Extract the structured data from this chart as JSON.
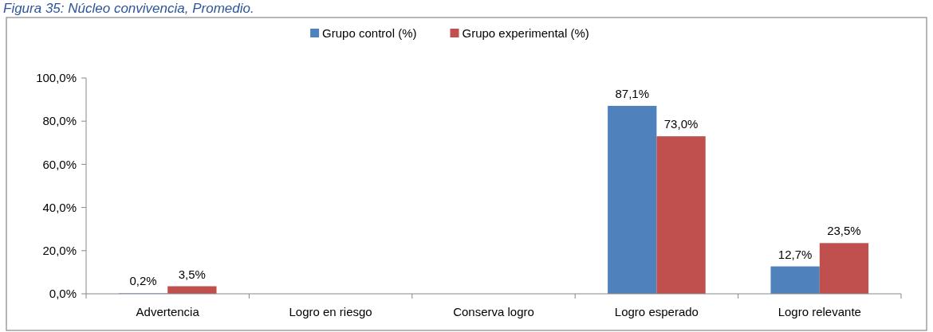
{
  "chart_data": {
    "type": "bar",
    "title": "Figura 35: Núcleo convivencia, Promedio.",
    "categories": [
      "Advertencia",
      "Logro en riesgo",
      "Conserva logro",
      "Logro esperado",
      "Logro relevante"
    ],
    "series": [
      {
        "name": "Grupo control (%)",
        "color": "#4f81bd",
        "values": [
          0.2,
          null,
          null,
          87.1,
          12.7
        ],
        "value_labels": [
          "0,2%",
          null,
          null,
          "87,1%",
          "12,7%"
        ]
      },
      {
        "name": "Grupo experimental (%)",
        "color": "#c0504d",
        "values": [
          3.5,
          null,
          null,
          73.0,
          23.5
        ],
        "value_labels": [
          "3,5%",
          null,
          null,
          "73,0%",
          "23,5%"
        ]
      }
    ],
    "ylim": [
      0,
      100
    ],
    "yticks": [
      {
        "value": 0,
        "label": "0,0%"
      },
      {
        "value": 20,
        "label": "20,0%"
      },
      {
        "value": 40,
        "label": "40,0%"
      },
      {
        "value": 60,
        "label": "60,0%"
      },
      {
        "value": 80,
        "label": "80,0%"
      },
      {
        "value": 100,
        "label": "100,0%"
      }
    ],
    "grid": false,
    "legend": "top"
  }
}
